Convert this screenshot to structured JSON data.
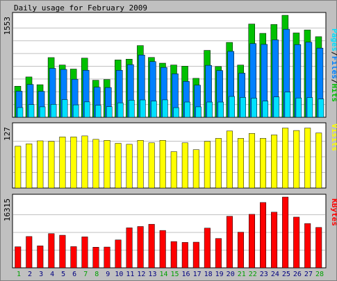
{
  "title": "Daily usage for February 2009",
  "colors": {
    "background": "#c0c0c0",
    "panel": "#ffffff",
    "hits": "#00c000",
    "files": "#0080ff",
    "pages": "#00e0ff",
    "visits": "#ffff00",
    "kbytes": "#ff0000",
    "grid": "#c0c0c0",
    "weekend_label": "#00a000",
    "weekday_label": "#000080"
  },
  "chart_data": [
    {
      "type": "bar",
      "name": "pages-files-hits",
      "categories": [
        "1",
        "2",
        "3",
        "4",
        "5",
        "6",
        "7",
        "8",
        "9",
        "10",
        "11",
        "12",
        "13",
        "14",
        "15",
        "16",
        "17",
        "18",
        "19",
        "20",
        "21",
        "22",
        "23",
        "24",
        "25",
        "26",
        "27",
        "28"
      ],
      "ytick_label": "1553",
      "ymax": 1553,
      "legend": [
        "Pages",
        "/",
        "Files",
        "/",
        "Hits"
      ],
      "series": [
        {
          "name": "Hits",
          "values": [
            473,
            614,
            496,
            909,
            796,
            734,
            901,
            564,
            575,
            873,
            885,
            1092,
            911,
            824,
            796,
            778,
            593,
            1019,
            773,
            1140,
            795,
            1420,
            1278,
            1414,
            1553,
            1284,
            1330,
            1227
          ]
        },
        {
          "name": "Files",
          "values": [
            397,
            500,
            395,
            745,
            729,
            579,
            716,
            458,
            453,
            715,
            802,
            948,
            848,
            759,
            662,
            546,
            489,
            791,
            712,
            1004,
            672,
            1122,
            1110,
            1179,
            1340,
            1107,
            1143,
            1053
          ]
        },
        {
          "name": "Pages",
          "values": [
            148,
            193,
            159,
            197,
            269,
            189,
            234,
            182,
            162,
            220,
            260,
            264,
            246,
            265,
            147,
            232,
            159,
            232,
            232,
            317,
            302,
            291,
            247,
            310,
            384,
            294,
            301,
            279
          ]
        }
      ]
    },
    {
      "type": "bar",
      "name": "visits",
      "categories": [
        "1",
        "2",
        "3",
        "4",
        "5",
        "6",
        "7",
        "8",
        "9",
        "10",
        "11",
        "12",
        "13",
        "14",
        "15",
        "16",
        "17",
        "18",
        "19",
        "20",
        "21",
        "22",
        "23",
        "24",
        "25",
        "26",
        "27",
        "28"
      ],
      "ytick_label": "127",
      "ymax": 127,
      "legend": [
        "Visits"
      ],
      "series": [
        {
          "name": "Visits",
          "values": [
            85,
            90,
            96,
            95,
            104,
            104,
            106,
            99,
            97,
            91,
            89,
            97,
            92,
            97,
            74,
            92,
            78,
            95,
            101,
            116,
            101,
            111,
            101,
            108,
            122,
            117,
            122,
            112
          ]
        }
      ]
    },
    {
      "type": "bar",
      "name": "kbytes",
      "categories": [
        "1",
        "2",
        "3",
        "4",
        "5",
        "6",
        "7",
        "8",
        "9",
        "10",
        "11",
        "12",
        "13",
        "14",
        "15",
        "16",
        "17",
        "18",
        "19",
        "20",
        "21",
        "22",
        "23",
        "24",
        "25",
        "26",
        "27",
        "28"
      ],
      "ytick_label": "16315",
      "ymax": 16315,
      "legend": [
        "KBytes"
      ],
      "series": [
        {
          "name": "KBytes",
          "values": [
            4858,
            7219,
            5062,
            7889,
            7512,
            4892,
            7138,
            4759,
            4793,
            6434,
            9225,
            9526,
            10048,
            8618,
            6058,
            5862,
            5916,
            9158,
            6764,
            11890,
            8219,
            12333,
            15060,
            12836,
            16315,
            11691,
            10216,
            9309
          ]
        }
      ]
    }
  ],
  "weekend_days": [
    1,
    7,
    8,
    14,
    15,
    21,
    22,
    28
  ]
}
